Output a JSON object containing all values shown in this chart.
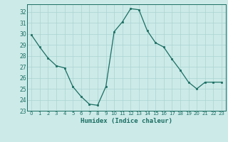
{
  "x": [
    0,
    1,
    2,
    3,
    4,
    5,
    6,
    7,
    8,
    9,
    10,
    11,
    12,
    13,
    14,
    15,
    16,
    17,
    18,
    19,
    20,
    21,
    22,
    23
  ],
  "y": [
    29.9,
    28.8,
    27.8,
    27.1,
    26.9,
    25.2,
    24.3,
    23.6,
    23.5,
    25.2,
    30.2,
    31.1,
    32.3,
    32.2,
    30.3,
    29.2,
    28.8,
    27.7,
    26.7,
    25.6,
    25.0,
    25.6,
    25.6,
    25.6
  ],
  "xlabel": "Humidex (Indice chaleur)",
  "xlim": [
    -0.5,
    23.5
  ],
  "ylim": [
    23,
    32.7
  ],
  "yticks": [
    23,
    24,
    25,
    26,
    27,
    28,
    29,
    30,
    31,
    32
  ],
  "xticks": [
    0,
    1,
    2,
    3,
    4,
    5,
    6,
    7,
    8,
    9,
    10,
    11,
    12,
    13,
    14,
    15,
    16,
    17,
    18,
    19,
    20,
    21,
    22,
    23
  ],
  "line_color": "#1a6e62",
  "bg_color": "#cceae8",
  "grid_color": "#aad4d0",
  "tick_label_color": "#1a6e62",
  "xlabel_color": "#1a6e62",
  "spine_color": "#1a6e62"
}
